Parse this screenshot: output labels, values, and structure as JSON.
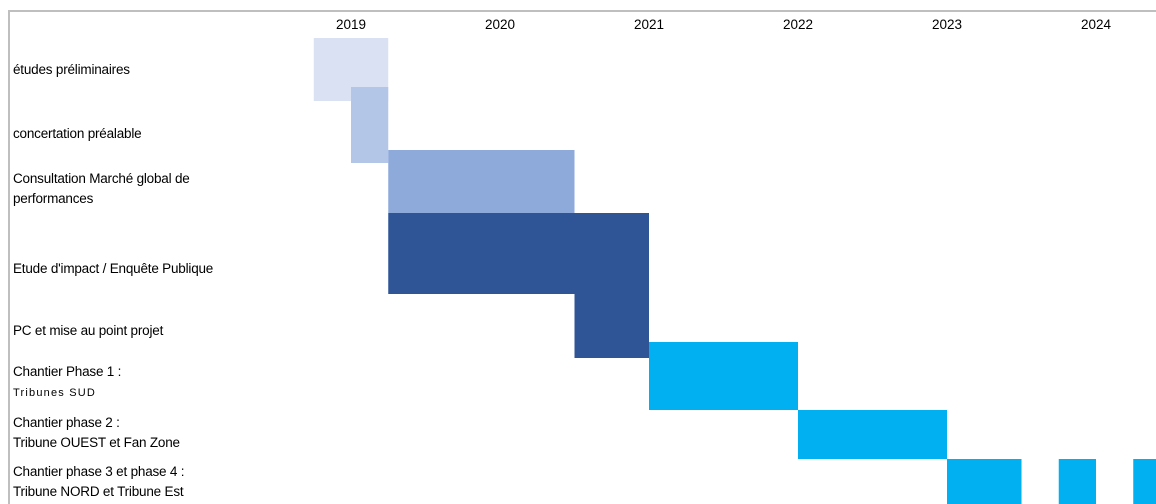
{
  "chart_data": {
    "type": "gantt",
    "title": "",
    "x_axis": {
      "unit": "year",
      "range": [
        2018.0,
        2024.3
      ],
      "tick_labels": [
        "2019",
        "2020",
        "2021",
        "2022",
        "2023",
        "2024"
      ],
      "tick_positions": [
        2019,
        2020,
        2021,
        2022,
        2023,
        2024
      ]
    },
    "grid": false,
    "tasks": [
      {
        "label": "études préliminaires",
        "sublabel": "",
        "start": 2018.75,
        "end": 2019.25,
        "color": "#d9e1f2"
      },
      {
        "label": "concertation préalable",
        "sublabel": "",
        "start": 2019.0,
        "end": 2019.25,
        "color": "#b4c6e7"
      },
      {
        "label": "Consultation Marché global de",
        "sublabel": "performances",
        "start": 2019.25,
        "end": 2020.5,
        "color": "#8eaadb"
      },
      {
        "label": "Etude d'impact / Enquête Publique",
        "sublabel": "",
        "start": 2019.25,
        "end": 2021.0,
        "color": "#2f5597"
      },
      {
        "label": "PC et mise au point projet",
        "sublabel": "",
        "start": 2020.5,
        "end": 2021.0,
        "color": "#2f5597"
      },
      {
        "label": "Chantier Phase 1 :",
        "sublabel": "Tribunes SUD",
        "start": 2021.0,
        "end": 2022.0,
        "color": "#00b0f0"
      },
      {
        "label": "Chantier phase 2 :",
        "sublabel": "Tribune OUEST et Fan Zone",
        "start": 2022.0,
        "end": 2023.0,
        "color": "#00b0f0"
      },
      {
        "label": "Chantier phase 3 et phase 4 :",
        "sublabel": "Tribune NORD et Tribune Est",
        "segments": [
          [
            2023.0,
            2023.5
          ],
          [
            2023.75,
            2024.0
          ],
          [
            2024.25,
            2024.45
          ]
        ],
        "color": "#00b0f0"
      }
    ]
  }
}
